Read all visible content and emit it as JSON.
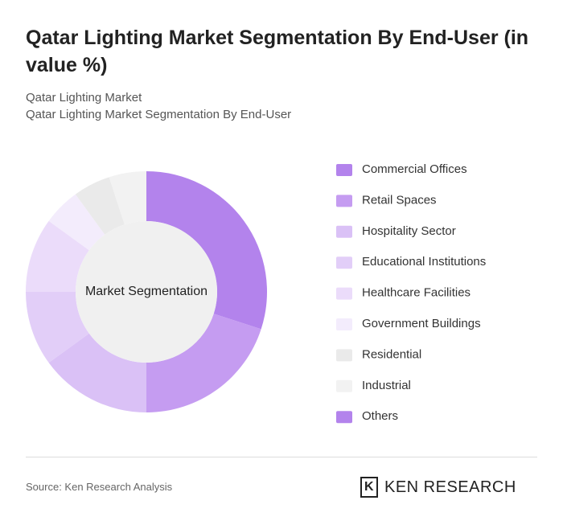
{
  "chart_data": {
    "type": "donut",
    "title": "Qatar Lighting Market Segmentation By End-User (in value %)",
    "subtitle": [
      "Qatar Lighting Market",
      "Qatar Lighting Market Segmentation By End-User"
    ],
    "center_label": "Market Segmentation",
    "categories": [
      "Commercial Offices",
      "Retail Spaces",
      "Hospitality Sector",
      "Educational Institutions",
      "Healthcare Facilities",
      "Government Buildings",
      "Residential",
      "Industrial",
      "Others"
    ],
    "values": [
      30,
      20,
      15,
      10,
      10,
      5,
      5,
      5,
      0
    ],
    "colors": [
      "#b383ec",
      "#c59cf1",
      "#dac1f6",
      "#e2cef8",
      "#ebdcfa",
      "#f3ecfc",
      "#eaeaea",
      "#f2f2f2",
      "#b383ec"
    ],
    "source": "Source: Ken Research Analysis",
    "brand": "KEN RESEARCH"
  }
}
